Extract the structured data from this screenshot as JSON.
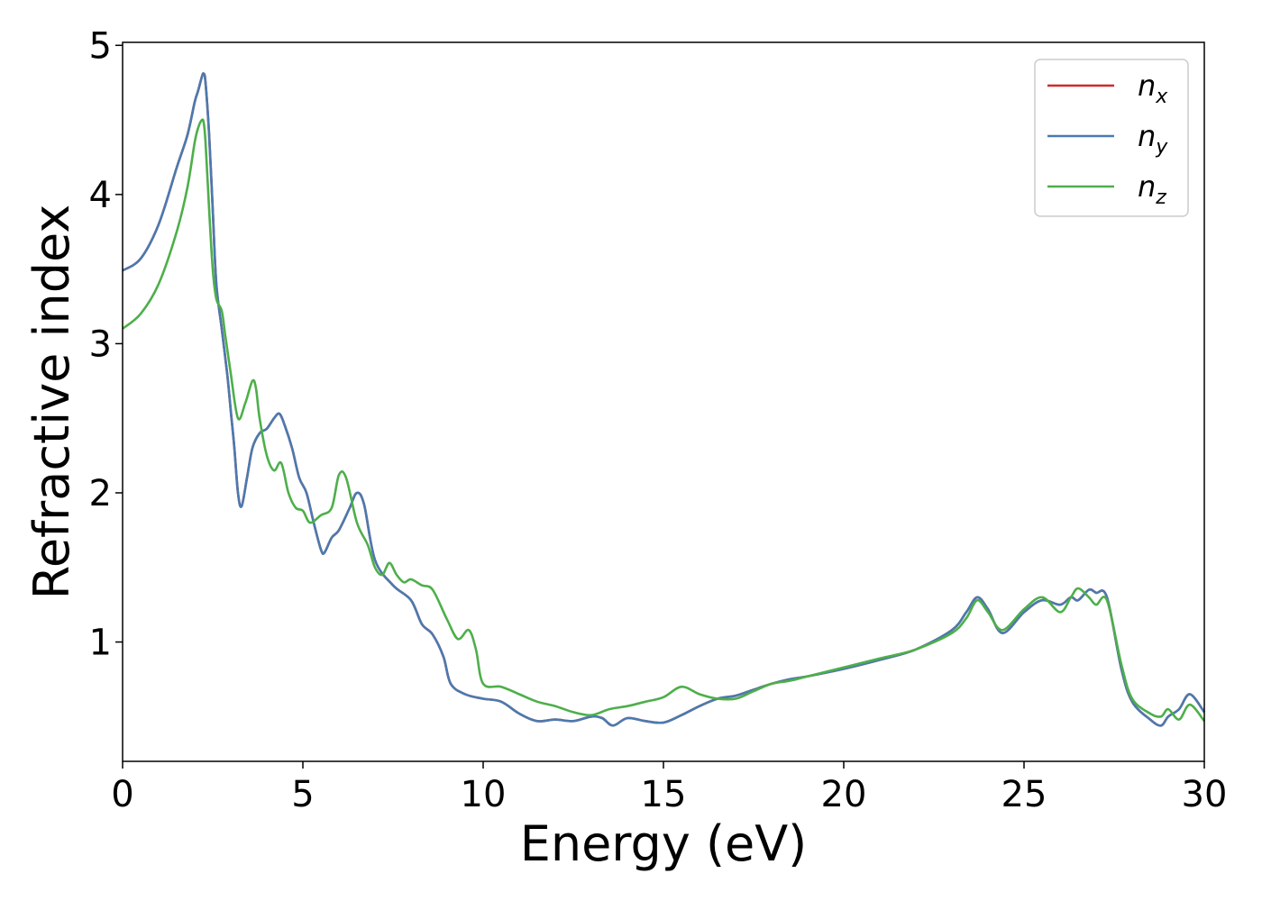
{
  "chart_data": {
    "type": "line",
    "title": "",
    "xlabel": "Energy (eV)",
    "ylabel": "Refractive index",
    "xlim": [
      0,
      30
    ],
    "ylim": [
      0.2,
      5.02
    ],
    "xticks": [
      0,
      5,
      10,
      15,
      20,
      25,
      30
    ],
    "yticks": [
      1,
      2,
      3,
      4,
      5
    ],
    "grid": false,
    "legend_position": "top-right",
    "series": [
      {
        "name": "n_x",
        "label_base": "n",
        "label_sub": "x",
        "color": "#d62728",
        "x": [
          0,
          0.5,
          1,
          1.5,
          1.8,
          2.0,
          2.1,
          2.2,
          2.25,
          2.3,
          2.4,
          2.5,
          2.6,
          2.75,
          2.9,
          3.0,
          3.1,
          3.2,
          3.3,
          3.45,
          3.6,
          3.8,
          4.0,
          4.2,
          4.35,
          4.5,
          4.7,
          4.9,
          5.1,
          5.3,
          5.5,
          5.6,
          5.8,
          6.0,
          6.3,
          6.5,
          6.7,
          7.0,
          7.5,
          8.0,
          8.3,
          8.6,
          8.9,
          9.1,
          9.5,
          10.0,
          10.5,
          11.0,
          11.5,
          12.0,
          12.5,
          13.0,
          13.3,
          13.6,
          14.0,
          14.5,
          15.0,
          15.5,
          16.0,
          16.5,
          17.0,
          17.5,
          18.0,
          18.5,
          19.0,
          20.0,
          21.0,
          22.0,
          23.0,
          23.4,
          23.7,
          24.0,
          24.4,
          25.0,
          25.5,
          26.0,
          26.3,
          26.5,
          26.8,
          27.0,
          27.3,
          27.7,
          28.0,
          28.5,
          28.8,
          29.0,
          29.3,
          29.6,
          30.0
        ],
        "y": [
          3.49,
          3.57,
          3.8,
          4.18,
          4.4,
          4.62,
          4.7,
          4.79,
          4.81,
          4.75,
          4.4,
          3.9,
          3.4,
          3.1,
          2.8,
          2.55,
          2.3,
          2.0,
          1.91,
          2.1,
          2.3,
          2.4,
          2.43,
          2.5,
          2.53,
          2.45,
          2.3,
          2.1,
          2.0,
          1.8,
          1.62,
          1.6,
          1.7,
          1.75,
          1.9,
          2.0,
          1.92,
          1.55,
          1.38,
          1.28,
          1.12,
          1.05,
          0.9,
          0.72,
          0.65,
          0.62,
          0.6,
          0.52,
          0.47,
          0.48,
          0.47,
          0.5,
          0.49,
          0.44,
          0.49,
          0.47,
          0.46,
          0.51,
          0.57,
          0.62,
          0.64,
          0.68,
          0.72,
          0.75,
          0.77,
          0.82,
          0.88,
          0.95,
          1.08,
          1.2,
          1.3,
          1.22,
          1.06,
          1.2,
          1.28,
          1.25,
          1.3,
          1.28,
          1.35,
          1.33,
          1.3,
          0.82,
          0.6,
          0.48,
          0.44,
          0.5,
          0.55,
          0.65,
          0.53
        ]
      },
      {
        "name": "n_y",
        "label_base": "n",
        "label_sub": "y",
        "color": "#4a7aaf",
        "x": [
          0,
          0.5,
          1,
          1.5,
          1.8,
          2.0,
          2.1,
          2.2,
          2.25,
          2.3,
          2.4,
          2.5,
          2.6,
          2.75,
          2.9,
          3.0,
          3.1,
          3.2,
          3.3,
          3.45,
          3.6,
          3.8,
          4.0,
          4.2,
          4.35,
          4.5,
          4.7,
          4.9,
          5.1,
          5.3,
          5.5,
          5.6,
          5.8,
          6.0,
          6.3,
          6.5,
          6.7,
          7.0,
          7.5,
          8.0,
          8.3,
          8.6,
          8.9,
          9.1,
          9.5,
          10.0,
          10.5,
          11.0,
          11.5,
          12.0,
          12.5,
          13.0,
          13.3,
          13.6,
          14.0,
          14.5,
          15.0,
          15.5,
          16.0,
          16.5,
          17.0,
          17.5,
          18.0,
          18.5,
          19.0,
          20.0,
          21.0,
          22.0,
          23.0,
          23.4,
          23.7,
          24.0,
          24.4,
          25.0,
          25.5,
          26.0,
          26.3,
          26.5,
          26.8,
          27.0,
          27.3,
          27.7,
          28.0,
          28.5,
          28.8,
          29.0,
          29.3,
          29.6,
          30.0
        ],
        "y": [
          3.49,
          3.57,
          3.8,
          4.18,
          4.4,
          4.62,
          4.7,
          4.79,
          4.81,
          4.75,
          4.4,
          3.9,
          3.4,
          3.1,
          2.8,
          2.55,
          2.3,
          2.0,
          1.91,
          2.1,
          2.3,
          2.4,
          2.43,
          2.5,
          2.53,
          2.45,
          2.3,
          2.1,
          2.0,
          1.8,
          1.62,
          1.6,
          1.7,
          1.75,
          1.9,
          2.0,
          1.92,
          1.55,
          1.38,
          1.28,
          1.12,
          1.05,
          0.9,
          0.72,
          0.65,
          0.62,
          0.6,
          0.52,
          0.47,
          0.48,
          0.47,
          0.5,
          0.49,
          0.44,
          0.49,
          0.47,
          0.46,
          0.51,
          0.57,
          0.62,
          0.64,
          0.68,
          0.72,
          0.75,
          0.77,
          0.82,
          0.88,
          0.95,
          1.08,
          1.2,
          1.3,
          1.22,
          1.06,
          1.2,
          1.28,
          1.25,
          1.3,
          1.28,
          1.35,
          1.33,
          1.3,
          0.82,
          0.6,
          0.48,
          0.44,
          0.5,
          0.55,
          0.65,
          0.53
        ]
      },
      {
        "name": "n_z",
        "label_base": "n",
        "label_sub": "z",
        "color": "#4daf4a",
        "x": [
          0,
          0.5,
          1,
          1.5,
          1.8,
          2.0,
          2.1,
          2.2,
          2.25,
          2.3,
          2.4,
          2.5,
          2.6,
          2.75,
          2.85,
          3.0,
          3.2,
          3.4,
          3.6,
          3.7,
          3.8,
          4.0,
          4.2,
          4.4,
          4.6,
          4.8,
          5.0,
          5.2,
          5.5,
          5.8,
          6.0,
          6.2,
          6.5,
          6.8,
          7.0,
          7.2,
          7.4,
          7.6,
          7.8,
          8.0,
          8.3,
          8.6,
          9.0,
          9.3,
          9.6,
          9.8,
          10.0,
          10.5,
          11.0,
          11.5,
          12.0,
          12.5,
          13.0,
          13.5,
          14.0,
          14.5,
          15.0,
          15.5,
          16.0,
          16.5,
          17.0,
          17.5,
          18.0,
          18.5,
          19.0,
          20.0,
          21.0,
          22.0,
          23.0,
          23.4,
          23.7,
          24.0,
          24.4,
          25.0,
          25.5,
          26.0,
          26.3,
          26.5,
          26.8,
          27.0,
          27.3,
          27.7,
          28.0,
          28.5,
          28.8,
          29.0,
          29.3,
          29.6,
          30.0
        ],
        "y": [
          3.1,
          3.2,
          3.4,
          3.75,
          4.05,
          4.35,
          4.45,
          4.5,
          4.48,
          4.35,
          3.9,
          3.5,
          3.3,
          3.22,
          3.05,
          2.8,
          2.5,
          2.6,
          2.75,
          2.7,
          2.5,
          2.25,
          2.15,
          2.2,
          2.0,
          1.9,
          1.88,
          1.8,
          1.85,
          1.9,
          2.12,
          2.1,
          1.8,
          1.65,
          1.5,
          1.45,
          1.53,
          1.45,
          1.4,
          1.42,
          1.38,
          1.35,
          1.15,
          1.02,
          1.08,
          0.95,
          0.72,
          0.7,
          0.65,
          0.6,
          0.57,
          0.53,
          0.51,
          0.55,
          0.57,
          0.6,
          0.63,
          0.7,
          0.65,
          0.62,
          0.62,
          0.67,
          0.72,
          0.74,
          0.77,
          0.83,
          0.89,
          0.95,
          1.06,
          1.16,
          1.28,
          1.2,
          1.08,
          1.22,
          1.3,
          1.2,
          1.3,
          1.36,
          1.3,
          1.25,
          1.28,
          0.85,
          0.62,
          0.52,
          0.5,
          0.55,
          0.48,
          0.58,
          0.47
        ]
      }
    ]
  }
}
